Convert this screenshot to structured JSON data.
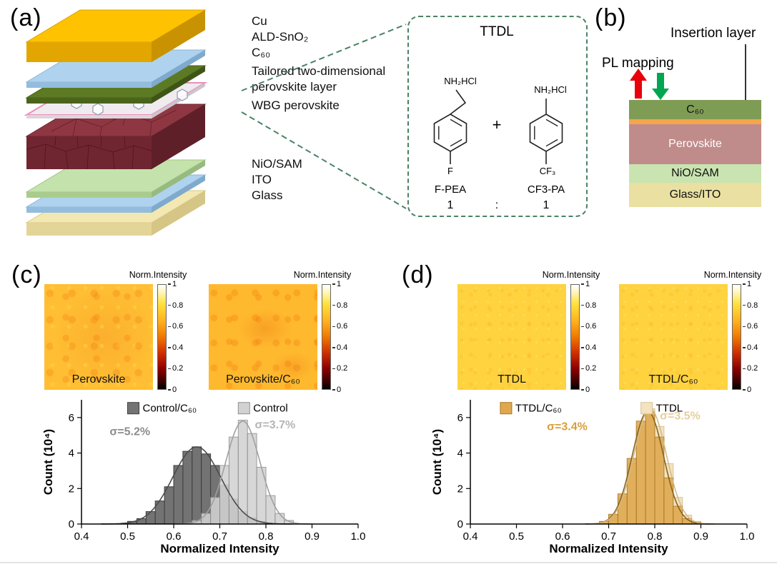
{
  "panels": {
    "a": {
      "label": "(a)",
      "stack_labels": [
        "Cu",
        "ALD-SnO₂",
        "C₆₀",
        "Tailored two-dimensional",
        "perovskite layer",
        "WBG perovskite",
        "NiO/SAM",
        "ITO",
        "Glass"
      ],
      "callout": {
        "title": "TTDL",
        "plus": "+",
        "ratio_colon": ":",
        "left_molecule": {
          "top_group": "NH₂HCl",
          "bottom_group": "F",
          "name": "F-PEA",
          "ratio": "1"
        },
        "right_molecule": {
          "top_group": "NH₂HCl",
          "bottom_group": "CF₃",
          "name": "CF3-PA",
          "ratio": "1"
        }
      }
    },
    "b": {
      "label": "(b)",
      "insertion_layer_label": "Insertion layer",
      "pl_mapping_label": "PL mapping",
      "arrow_colors": {
        "up": "#e8000b",
        "down": "#00a650"
      },
      "layers": [
        {
          "name": "C₆₀",
          "color": "#7f9c55",
          "text_color": "#111111"
        },
        {
          "name": "",
          "color": "#f5a54b",
          "text_color": "#111111"
        },
        {
          "name": "Perovskite",
          "color": "#c08b8b",
          "text_color": "#ffffff"
        },
        {
          "name": "NiO/SAM",
          "color": "#c9e4b0",
          "text_color": "#111111"
        },
        {
          "name": "Glass/ITO",
          "color": "#e9e0a2",
          "text_color": "#111111"
        }
      ]
    },
    "c": {
      "label": "(c)",
      "maps": [
        {
          "title": "Perovskite",
          "colorbar_label": "Norm.Intensity",
          "ticks": [
            "1",
            "0.8",
            "0.6",
            "0.4",
            "0.2",
            "0"
          ]
        },
        {
          "title": "Perovskite/C₆₀",
          "colorbar_label": "Norm.Intensity",
          "ticks": [
            "1",
            "0.8",
            "0.6",
            "0.4",
            "0.2",
            "0"
          ]
        }
      ]
    },
    "d": {
      "label": "(d)",
      "maps": [
        {
          "title": "TTDL",
          "colorbar_label": "Norm.Intensity",
          "ticks": [
            "1",
            "0.8",
            "0.6",
            "0.4",
            "0.2",
            "0"
          ]
        },
        {
          "title": "TTDL/C₆₀",
          "colorbar_label": "Norm.Intensity",
          "ticks": [
            "1",
            "0.8",
            "0.6",
            "0.4",
            "0.2",
            "0"
          ]
        }
      ]
    }
  },
  "chart_data": [
    {
      "type": "histogram",
      "panel": "c",
      "x_label": "Normalized Intensity",
      "y_label": "Count (10⁴)",
      "x_range": [
        0.4,
        1.0
      ],
      "y_range": [
        0,
        7
      ],
      "x_ticks": [
        0.4,
        0.5,
        0.6,
        0.7,
        0.8,
        0.9,
        1.0
      ],
      "y_ticks": [
        0,
        2,
        4,
        6
      ],
      "bin_width": 0.02,
      "grid": false,
      "legend_position": "top-center",
      "draw_order": [
        0,
        1
      ],
      "series": [
        {
          "name": "Control/C₆₀",
          "fill": "#737373",
          "stroke": "#3d3d3d",
          "curve": "#4c4c4c",
          "sigma_label": "σ=5.2%",
          "sigma_color": "#8c8c8c",
          "sigma_pos": [
            0.505,
            5.0
          ],
          "legend_pos": [
            0.5,
            6.85
          ],
          "gauss": {
            "mean": 0.65,
            "sigma": 0.052,
            "peak": 4.35
          },
          "bins": [
            0.51,
            0.53,
            0.55,
            0.57,
            0.59,
            0.61,
            0.63,
            0.65,
            0.67,
            0.69,
            0.71,
            0.73,
            0.75,
            0.77,
            0.79
          ],
          "counts": [
            0.15,
            0.3,
            0.7,
            1.3,
            2.1,
            3.3,
            4.1,
            4.35,
            3.95,
            3.3,
            2.2,
            1.4,
            0.7,
            0.35,
            0.15
          ]
        },
        {
          "name": "Control",
          "fill": "#d2d2d2",
          "stroke": "#8f8f8f",
          "curve": "#a0a0a0",
          "sigma_label": "σ=3.7%",
          "sigma_color": "#b5b5b5",
          "sigma_pos": [
            0.82,
            5.4
          ],
          "legend_pos": [
            0.74,
            6.85
          ],
          "gauss": {
            "mean": 0.75,
            "sigma": 0.037,
            "peak": 5.8
          },
          "bins": [
            0.65,
            0.67,
            0.69,
            0.71,
            0.73,
            0.75,
            0.77,
            0.79,
            0.81,
            0.83,
            0.85
          ],
          "counts": [
            0.2,
            0.6,
            1.5,
            3.3,
            4.9,
            5.85,
            5.1,
            3.2,
            1.6,
            0.6,
            0.2
          ]
        }
      ]
    },
    {
      "type": "histogram",
      "panel": "d",
      "x_label": "Normalized Intensity",
      "y_label": "Count (10⁴)",
      "x_range": [
        0.4,
        1.0
      ],
      "y_range": [
        0,
        7
      ],
      "x_ticks": [
        0.4,
        0.5,
        0.6,
        0.7,
        0.8,
        0.9,
        1.0
      ],
      "y_ticks": [
        0,
        2,
        4,
        6
      ],
      "bin_width": 0.02,
      "grid": false,
      "legend_position": "top-center",
      "draw_order": [
        1,
        0
      ],
      "series": [
        {
          "name": "TTDL/C₆₀",
          "fill": "#dfa84e",
          "stroke": "#a87820",
          "curve": "#8a6420",
          "sigma_label": "σ=3.4%",
          "sigma_color": "#d99f3e",
          "sigma_pos": [
            0.61,
            5.3
          ],
          "legend_pos": [
            0.465,
            6.85
          ],
          "gauss": {
            "mean": 0.785,
            "sigma": 0.034,
            "peak": 6.35
          },
          "bins": [
            0.69,
            0.71,
            0.73,
            0.75,
            0.77,
            0.79,
            0.81,
            0.83,
            0.85,
            0.87,
            0.89
          ],
          "counts": [
            0.15,
            0.55,
            1.7,
            3.7,
            5.8,
            6.3,
            4.9,
            2.6,
            1.0,
            0.3,
            0.1
          ]
        },
        {
          "name": "TTDL",
          "fill": "#f3e3c0",
          "stroke": "#d9c294",
          "curve": "#d4ba88",
          "sigma_label": "σ=3.5%",
          "sigma_color": "#e6cf9e",
          "sigma_pos": [
            0.855,
            5.9
          ],
          "legend_pos": [
            0.77,
            6.85
          ],
          "gauss": {
            "mean": 0.79,
            "sigma": 0.035,
            "peak": 6.5
          },
          "bins": [
            0.69,
            0.71,
            0.73,
            0.75,
            0.77,
            0.79,
            0.81,
            0.83,
            0.85,
            0.87,
            0.89
          ],
          "counts": [
            0.1,
            0.5,
            1.5,
            3.4,
            5.5,
            6.5,
            5.5,
            3.4,
            1.5,
            0.5,
            0.15
          ]
        }
      ]
    }
  ]
}
